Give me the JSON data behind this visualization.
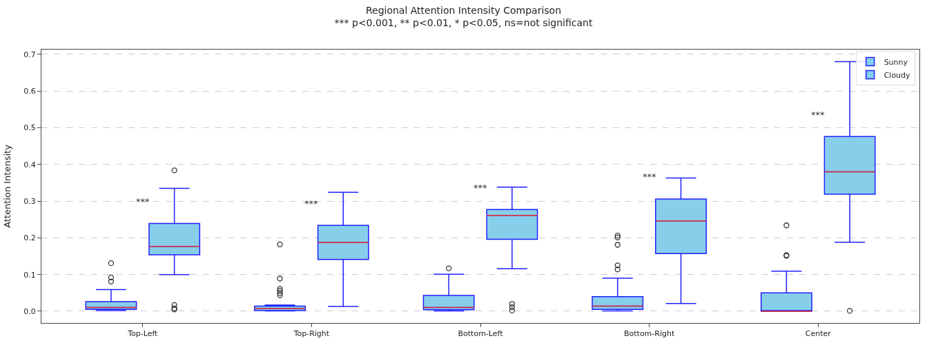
{
  "chart_data": {
    "type": "box",
    "title": "Regional Attention Intensity Comparison",
    "subtitle": "*** p<0.001, ** p<0.01, * p<0.05, ns=not significant",
    "ylabel": "Attention Intensity",
    "categories": [
      "Top-Left",
      "Top-Right",
      "Bottom-Left",
      "Bottom-Right",
      "Center"
    ],
    "series": [
      {
        "name": "Sunny",
        "color": "#87ceeb",
        "boxes": [
          {
            "low": 0.002,
            "q1": 0.005,
            "median": 0.01,
            "q3": 0.026,
            "high": 0.059,
            "outliers": [
              0.081,
              0.092,
              0.131
            ]
          },
          {
            "low": 0.001,
            "q1": 0.002,
            "median": 0.007,
            "q3": 0.014,
            "high": 0.017,
            "outliers": [
              0.044,
              0.05,
              0.056,
              0.061,
              0.089,
              0.182
            ]
          },
          {
            "low": 0.001,
            "q1": 0.004,
            "median": 0.01,
            "q3": 0.043,
            "high": 0.101,
            "outliers": [
              0.117
            ]
          },
          {
            "low": 0.001,
            "q1": 0.005,
            "median": 0.014,
            "q3": 0.04,
            "high": 0.09,
            "outliers": [
              0.114,
              0.125,
              0.181,
              0.201,
              0.206
            ]
          },
          {
            "low": 0.0,
            "q1": 0.0,
            "median": 0.0,
            "q3": 0.05,
            "high": 0.109,
            "outliers": [
              0.151,
              0.153,
              0.234
            ]
          }
        ]
      },
      {
        "name": "Cloudy",
        "color": "#87ceeb",
        "boxes": [
          {
            "low": 0.1,
            "q1": 0.154,
            "median": 0.177,
            "q3": 0.239,
            "high": 0.335,
            "outliers": [
              0.005,
              0.008,
              0.017,
              0.384
            ]
          },
          {
            "low": 0.013,
            "q1": 0.141,
            "median": 0.187,
            "q3": 0.234,
            "high": 0.324
          },
          {
            "low": 0.116,
            "q1": 0.196,
            "median": 0.261,
            "q3": 0.277,
            "high": 0.338,
            "outliers": [
              0.002,
              0.011,
              0.02
            ]
          },
          {
            "low": 0.021,
            "q1": 0.157,
            "median": 0.246,
            "q3": 0.306,
            "high": 0.363
          },
          {
            "low": 0.188,
            "q1": 0.319,
            "median": 0.38,
            "q3": 0.476,
            "high": 0.68,
            "outliers": [
              0.001
            ]
          }
        ]
      }
    ],
    "annotations": [
      "***",
      "***",
      "***",
      "***",
      "***"
    ],
    "ylim": [
      -0.032,
      0.713
    ],
    "yticks": [
      {
        "value": 0,
        "label": "0.0"
      },
      0.1,
      0.2,
      0.3,
      0.4,
      0.5,
      0.6,
      0.7
    ],
    "grid": "y",
    "legend": "top right"
  }
}
